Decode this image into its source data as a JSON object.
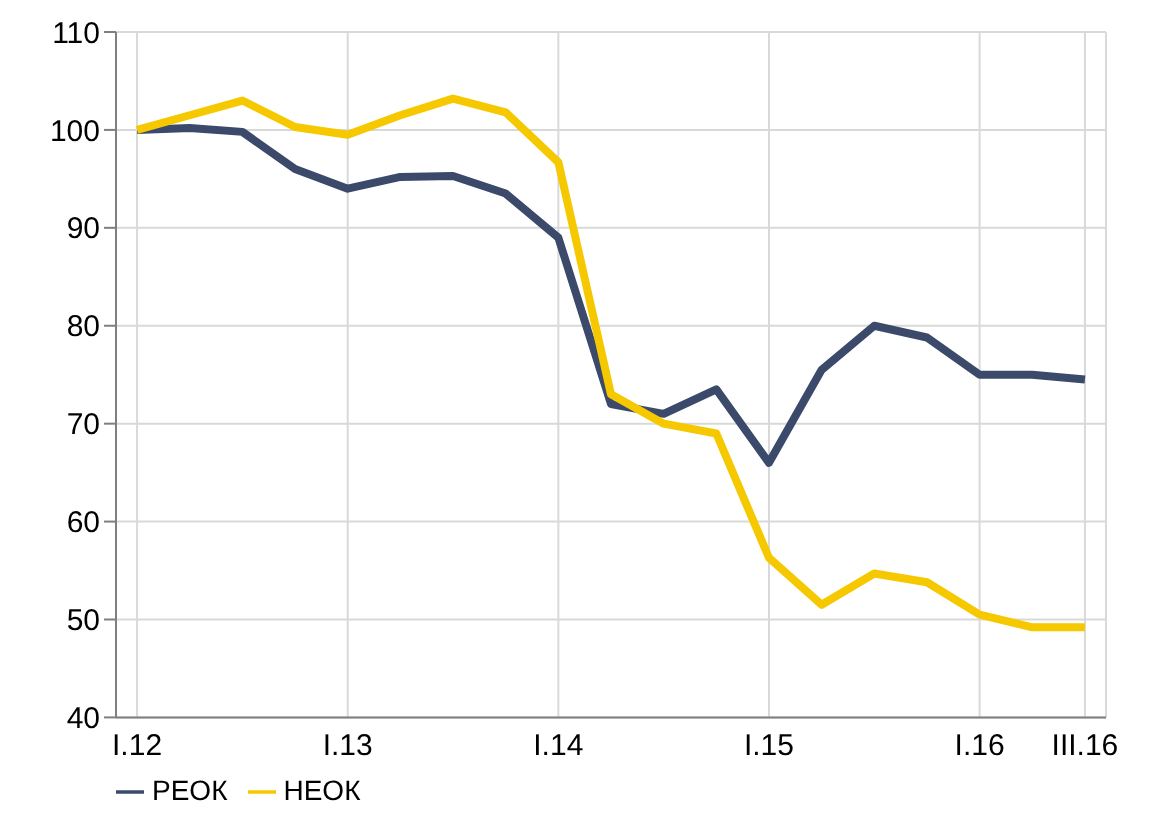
{
  "chart_data": {
    "type": "line",
    "categories": [
      "I.12",
      null,
      null,
      null,
      "I.13",
      null,
      null,
      null,
      "I.14",
      null,
      null,
      null,
      "I.15",
      null,
      null,
      null,
      "I.16",
      null,
      "III.16"
    ],
    "series": [
      {
        "name": "РЕОК",
        "color": "#3b4a6b",
        "values": [
          100,
          100.2,
          99.8,
          96,
          94,
          95.2,
          95.3,
          93.5,
          89,
          72,
          71,
          73.5,
          66,
          75.5,
          80,
          78.8,
          75,
          75,
          74.5
        ]
      },
      {
        "name": "НЕОК",
        "color": "#f5c800",
        "values": [
          100,
          101.5,
          103,
          100.3,
          99.5,
          101.5,
          103.2,
          101.8,
          96.7,
          73,
          70,
          69,
          56.3,
          51.5,
          54.7,
          53.8,
          50.5,
          49.2,
          49.2
        ]
      }
    ],
    "ylim": [
      40,
      110
    ],
    "yticks": [
      40,
      50,
      60,
      70,
      80,
      90,
      100,
      110
    ],
    "grid": true,
    "legend": "bottom left",
    "marker": "none",
    "line_style": "solid"
  }
}
